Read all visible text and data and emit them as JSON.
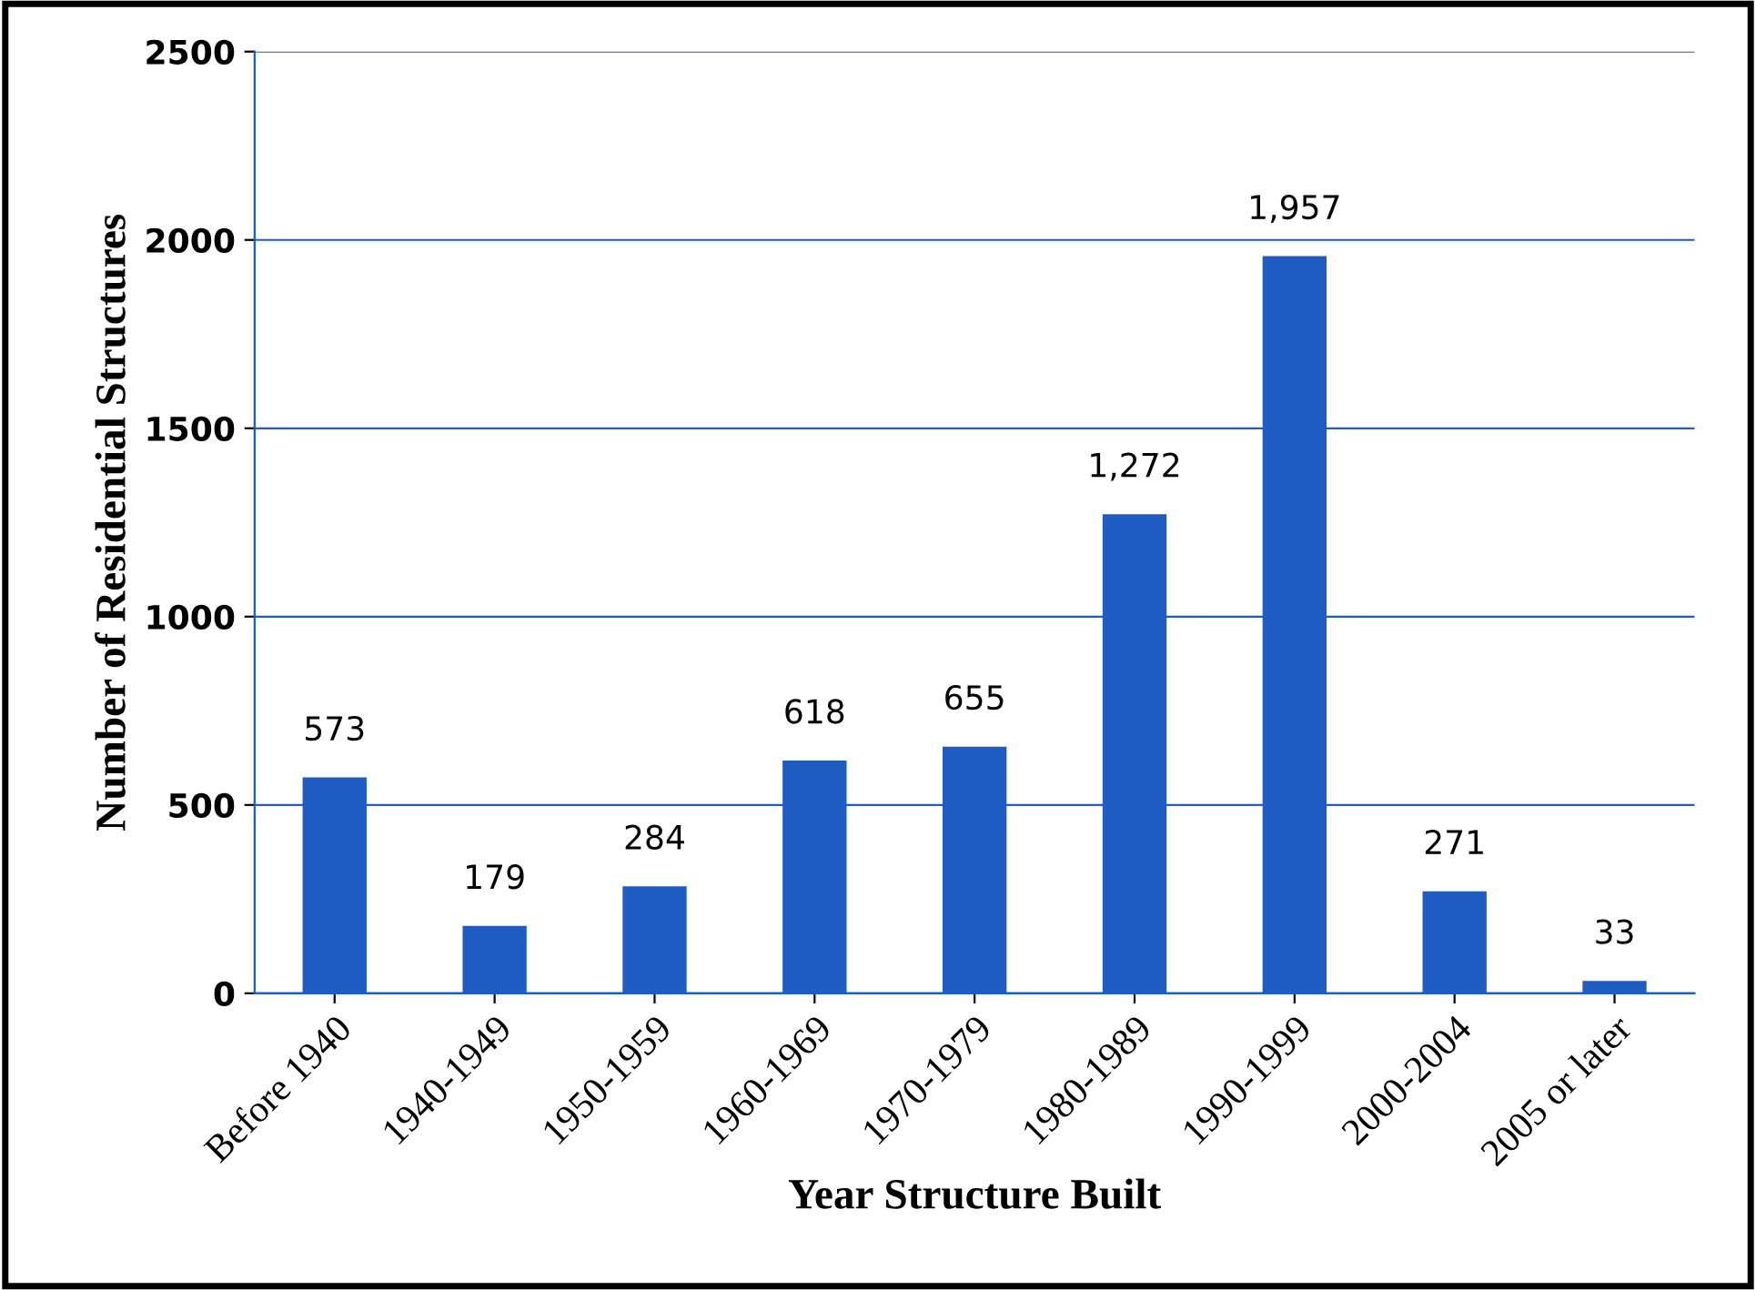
{
  "chart_data": {
    "type": "bar",
    "xlabel": "Year Structure Built",
    "ylabel": "Number of Residential Structures",
    "categories": [
      "Before 1940",
      "1940-1949",
      "1950-1959",
      "1960-1969",
      "1970-1979",
      "1980-1989",
      "1990-1999",
      "2000-2004",
      "2005 or later"
    ],
    "values": [
      573,
      179,
      284,
      618,
      655,
      1272,
      1957,
      271,
      33
    ],
    "value_labels": [
      "573",
      "179",
      "284",
      "618",
      "655",
      "1,272",
      "1,957",
      "271",
      "33"
    ],
    "color": "#1f5cc4",
    "ylim": [
      0,
      2500
    ],
    "yticks": [
      0,
      500,
      1000,
      1500,
      2000,
      2500
    ],
    "grid": "y",
    "legend": false
  }
}
